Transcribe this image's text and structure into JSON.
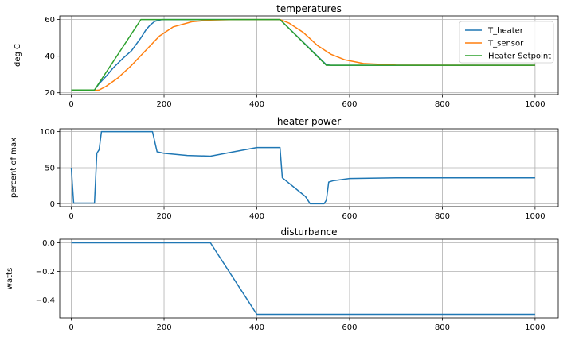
{
  "chart_data": [
    {
      "type": "line",
      "title": "temperatures",
      "xlabel": "",
      "ylabel": "deg C",
      "xlim": [
        -25,
        1050
      ],
      "ylim": [
        19,
        62
      ],
      "xticks": [
        0,
        200,
        400,
        600,
        800,
        1000
      ],
      "yticks": [
        20,
        40,
        60
      ],
      "grid": true,
      "legend": "top-right",
      "series": [
        {
          "name": "T_heater",
          "color": "#1f77b4",
          "points": [
            [
              0,
              21.5
            ],
            [
              50,
              21.5
            ],
            [
              60,
              25
            ],
            [
              75,
              29
            ],
            [
              90,
              33.5
            ],
            [
              110,
              38.5
            ],
            [
              130,
              43
            ],
            [
              150,
              50
            ],
            [
              160,
              54
            ],
            [
              170,
              57
            ],
            [
              180,
              59
            ],
            [
              195,
              60
            ],
            [
              450,
              60
            ],
            [
              550,
              35.3
            ],
            [
              560,
              35
            ],
            [
              1000,
              35
            ]
          ]
        },
        {
          "name": "T_sensor",
          "color": "#ff7f0e",
          "points": [
            [
              0,
              21.2
            ],
            [
              50,
              21.2
            ],
            [
              60,
              21.5
            ],
            [
              75,
              23.5
            ],
            [
              100,
              28
            ],
            [
              130,
              35
            ],
            [
              160,
              43
            ],
            [
              190,
              51
            ],
            [
              220,
              56
            ],
            [
              260,
              58.8
            ],
            [
              300,
              59.7
            ],
            [
              350,
              60
            ],
            [
              450,
              60
            ],
            [
              470,
              58
            ],
            [
              500,
              53
            ],
            [
              530,
              46
            ],
            [
              560,
              41
            ],
            [
              590,
              38
            ],
            [
              630,
              36
            ],
            [
              700,
              35.1
            ],
            [
              1000,
              35
            ]
          ]
        },
        {
          "name": "Heater Setpoint",
          "color": "#2ca02c",
          "points": [
            [
              0,
              21.5
            ],
            [
              50,
              21.5
            ],
            [
              150,
              60
            ],
            [
              450,
              60
            ],
            [
              550,
              35
            ],
            [
              1000,
              35
            ]
          ]
        }
      ]
    },
    {
      "type": "line",
      "title": "heater power",
      "xlabel": "",
      "ylabel": "percent of max",
      "xlim": [
        -25,
        1050
      ],
      "ylim": [
        -4,
        104
      ],
      "xticks": [
        0,
        200,
        400,
        600,
        800,
        1000
      ],
      "yticks": [
        0,
        50,
        100
      ],
      "grid": true,
      "series": [
        {
          "name": "",
          "color": "#1f77b4",
          "points": [
            [
              0,
              50
            ],
            [
              5,
              1
            ],
            [
              50,
              1
            ],
            [
              55,
              70
            ],
            [
              60,
              75
            ],
            [
              65,
              100
            ],
            [
              175,
              100
            ],
            [
              185,
              72
            ],
            [
              200,
              70
            ],
            [
              250,
              67
            ],
            [
              300,
              66
            ],
            [
              350,
              72
            ],
            [
              400,
              78
            ],
            [
              450,
              78
            ],
            [
              455,
              36
            ],
            [
              505,
              10
            ],
            [
              510,
              5
            ],
            [
              515,
              0
            ],
            [
              545,
              0
            ],
            [
              550,
              5
            ],
            [
              555,
              30
            ],
            [
              565,
              32
            ],
            [
              600,
              35
            ],
            [
              700,
              36
            ],
            [
              1000,
              36
            ]
          ]
        }
      ]
    },
    {
      "type": "line",
      "title": "disturbance",
      "xlabel": "",
      "ylabel": "watts",
      "xlim": [
        -25,
        1050
      ],
      "ylim": [
        -0.525,
        0.025
      ],
      "xticks": [
        0,
        200,
        400,
        600,
        800,
        1000
      ],
      "yticks": [
        0.0,
        -0.2,
        -0.4
      ],
      "ytick_labels": [
        "0.0",
        "−0.2",
        "−0.4"
      ],
      "grid": true,
      "series": [
        {
          "name": "",
          "color": "#1f77b4",
          "points": [
            [
              0,
              0
            ],
            [
              300,
              0
            ],
            [
              400,
              -0.5
            ],
            [
              1000,
              -0.5
            ]
          ]
        }
      ]
    }
  ]
}
